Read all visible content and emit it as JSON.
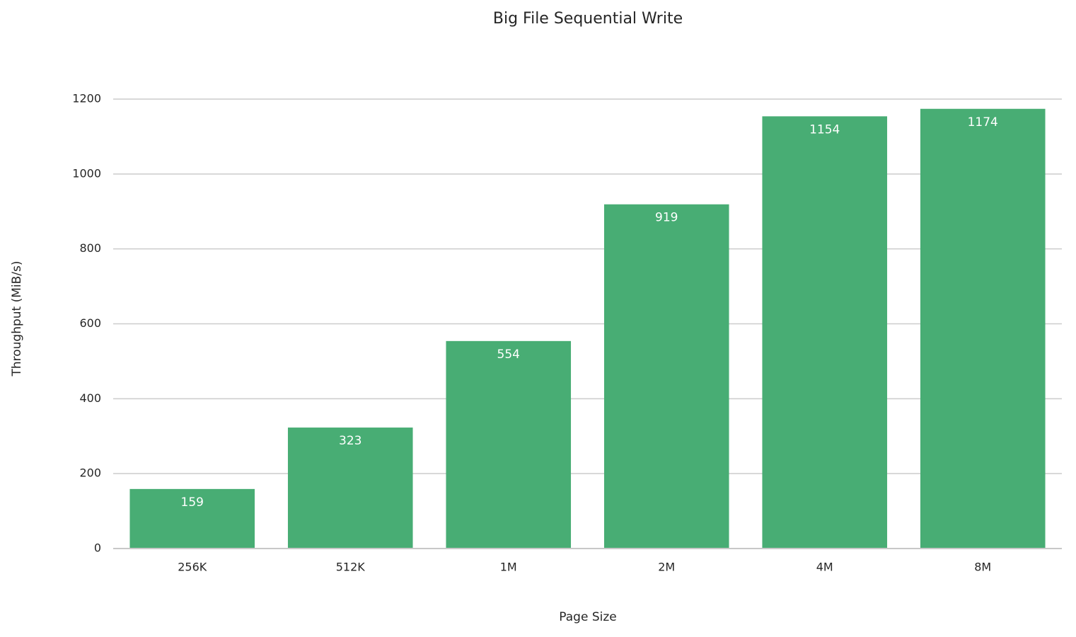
{
  "chart_data": {
    "type": "bar",
    "title": "Big File Sequential Write",
    "x_label": "Page Size",
    "y_label": "Throughput (MiB/s)",
    "categories": [
      "256K",
      "512K",
      "1M",
      "2M",
      "4M",
      "8M"
    ],
    "values": [
      159,
      323,
      554,
      919,
      1154,
      1174
    ],
    "color": "#48ad74",
    "ylim": [
      0,
      1232
    ],
    "yticks": [
      0,
      200,
      400,
      600,
      800,
      1000,
      1200
    ],
    "grid": true
  }
}
